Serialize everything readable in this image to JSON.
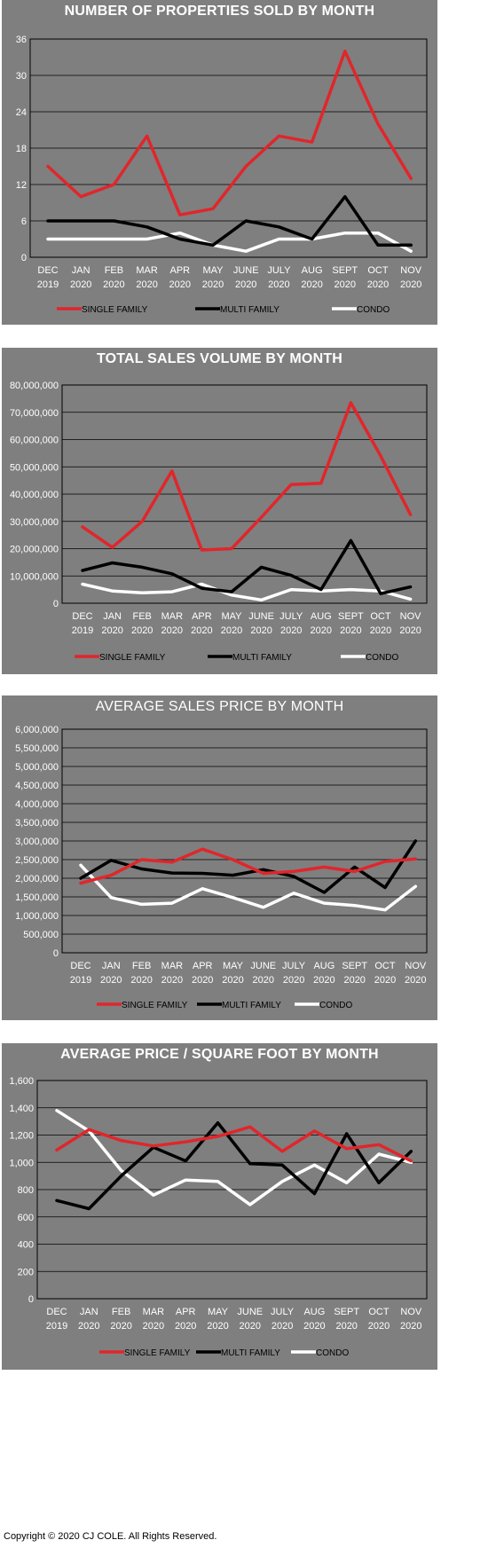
{
  "colors": {
    "single_family": "#e0262b",
    "multi_family": "#000000",
    "condo": "#ffffff",
    "panel_bg": "#7f7f7f",
    "axis": "#000000",
    "grid": "#000000"
  },
  "chart_data": [
    {
      "type": "line",
      "title": "NUMBER OF PROPERTIES SOLD BY MONTH",
      "categories": [
        "DEC 2019",
        "JAN 2020",
        "FEB 2020",
        "MAR 2020",
        "APR 2020",
        "MAY 2020",
        "JUNE 2020",
        "JULY 2020",
        "AUG 2020",
        "SEPT 2020",
        "OCT 2020",
        "NOV 2020"
      ],
      "ylim": [
        0,
        36
      ],
      "yticks": [
        0,
        6,
        12,
        18,
        24,
        30,
        36
      ],
      "ytick_labels": [
        "0",
        "6",
        "12",
        "18",
        "24",
        "30",
        "36"
      ],
      "grid": true,
      "legend": "bottom",
      "series": [
        {
          "name": "SINGLE FAMILY",
          "values": [
            15,
            10,
            12,
            20,
            7,
            8,
            15,
            20,
            19,
            34,
            22,
            13
          ]
        },
        {
          "name": "MULTI FAMILY",
          "values": [
            6,
            6,
            6,
            5,
            3,
            2,
            6,
            5,
            3,
            10,
            2,
            2
          ]
        },
        {
          "name": "CONDO",
          "values": [
            3,
            3,
            3,
            3,
            4,
            2,
            1,
            3,
            3,
            4,
            4,
            1
          ]
        }
      ]
    },
    {
      "type": "line",
      "title": "TOTAL SALES VOLUME BY MONTH",
      "categories": [
        "DEC 2019",
        "JAN 2020",
        "FEB 2020",
        "MAR 2020",
        "APR 2020",
        "MAY 2020",
        "JUNE 2020",
        "JULY 2020",
        "AUG 2020",
        "SEPT 2020",
        "OCT 2020",
        "NOV 2020"
      ],
      "ylim": [
        0,
        80000000
      ],
      "yticks": [
        0,
        10000000,
        20000000,
        30000000,
        40000000,
        50000000,
        60000000,
        70000000,
        80000000
      ],
      "ytick_labels": [
        "0",
        "10,000,000",
        "20,000,000",
        "30,000,000",
        "40,000,000",
        "50,000,000",
        "60,000,000",
        "70,000,000",
        "80,000,000"
      ],
      "grid": true,
      "legend": "bottom",
      "series": [
        {
          "name": "SINGLE FAMILY",
          "values": [
            28000000,
            20500000,
            30000000,
            48500000,
            19500000,
            20000000,
            31500000,
            43500000,
            44000000,
            73500000,
            54000000,
            32500000
          ]
        },
        {
          "name": "MULTI FAMILY",
          "values": [
            12000000,
            14800000,
            13200000,
            10800000,
            5500000,
            4200000,
            13200000,
            10200000,
            5000000,
            23000000,
            3500000,
            6000000
          ]
        },
        {
          "name": "CONDO",
          "values": [
            7000000,
            4500000,
            3800000,
            4200000,
            7000000,
            3000000,
            1200000,
            5000000,
            4500000,
            5000000,
            4500000,
            1500000
          ]
        }
      ]
    },
    {
      "type": "line",
      "title": "AVERAGE SALES PRICE BY MONTH",
      "categories": [
        "DEC 2019",
        "JAN 2020",
        "FEB 2020",
        "MAR 2020",
        "APR 2020",
        "MAY 2020",
        "JUNE 2020",
        "JULY 2020",
        "AUG 2020",
        "SEPT 2020",
        "OCT 2020",
        "NOV 2020"
      ],
      "ylim": [
        0,
        6000000
      ],
      "yticks": [
        0,
        500000,
        1000000,
        1500000,
        2000000,
        2500000,
        3000000,
        3500000,
        4000000,
        4500000,
        5000000,
        5500000,
        6000000
      ],
      "ytick_labels": [
        "0",
        "500,000",
        "1,000,000",
        "1,500,000",
        "2,000,000",
        "2,500,000",
        "3,000,000",
        "3,500,000",
        "4,000,000",
        "4,500,000",
        "5,000,000",
        "5,500,000",
        "6,000,000"
      ],
      "grid": true,
      "legend": "bottom",
      "series": [
        {
          "name": "SINGLE FAMILY",
          "values": [
            1870000,
            2080000,
            2500000,
            2430000,
            2780000,
            2500000,
            2130000,
            2180000,
            2300000,
            2180000,
            2450000,
            2520000
          ]
        },
        {
          "name": "MULTI FAMILY",
          "values": [
            2000000,
            2480000,
            2250000,
            2140000,
            2130000,
            2080000,
            2230000,
            2050000,
            1620000,
            2300000,
            1750000,
            3000000
          ]
        },
        {
          "name": "CONDO",
          "values": [
            2350000,
            1480000,
            1300000,
            1330000,
            1720000,
            1480000,
            1220000,
            1600000,
            1330000,
            1270000,
            1150000,
            1780000
          ]
        }
      ]
    },
    {
      "type": "line",
      "title": "AVERAGE PRICE / SQUARE FOOT BY MONTH",
      "categories": [
        "DEC 2019",
        "JAN 2020",
        "FEB 2020",
        "MAR 2020",
        "APR 2020",
        "MAY 2020",
        "JUNE 2020",
        "JULY 2020",
        "AUG 2020",
        "SEPT 2020",
        "OCT 2020",
        "NOV 2020"
      ],
      "ylim": [
        0,
        1600
      ],
      "yticks": [
        0,
        200,
        400,
        600,
        800,
        1000,
        1200,
        1400,
        1600
      ],
      "ytick_labels": [
        "0",
        "200",
        "400",
        "600",
        "800",
        "1,000",
        "1,200",
        "1,400",
        "1,600"
      ],
      "grid": true,
      "legend": "bottom",
      "series": [
        {
          "name": "SINGLE FAMILY",
          "values": [
            1090,
            1240,
            1160,
            1120,
            1150,
            1190,
            1260,
            1080,
            1230,
            1100,
            1130,
            1010
          ]
        },
        {
          "name": "MULTI FAMILY",
          "values": [
            720,
            660,
            900,
            1110,
            1010,
            1290,
            990,
            980,
            770,
            1210,
            850,
            1080
          ]
        },
        {
          "name": "CONDO",
          "values": [
            1380,
            1230,
            940,
            760,
            870,
            860,
            690,
            860,
            980,
            850,
            1060,
            1000
          ]
        }
      ]
    }
  ],
  "copyright": "Copyright © 2020 CJ COLE. All Rights Reserved."
}
